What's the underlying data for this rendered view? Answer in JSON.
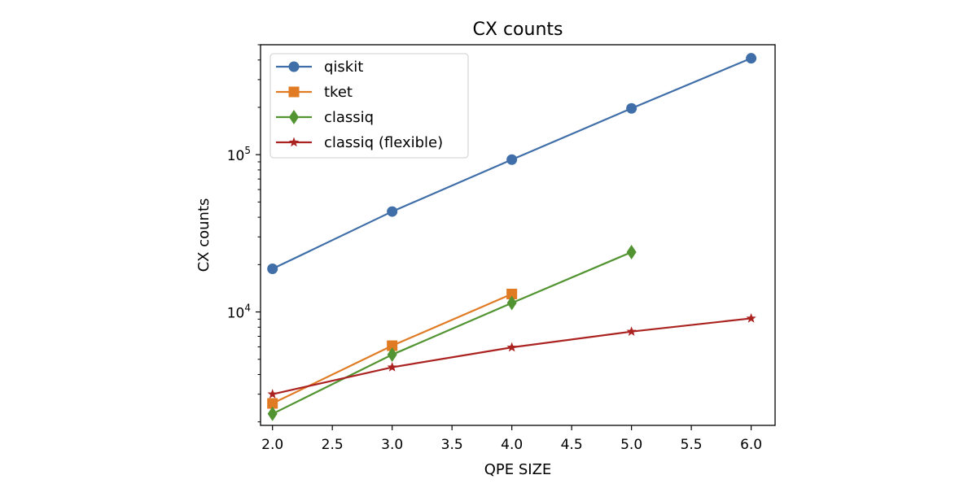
{
  "chart_data": {
    "type": "line",
    "title": "CX counts",
    "xlabel": "QPE SIZE",
    "ylabel": "CX counts",
    "yscale": "log",
    "xlim": [
      1.9,
      6.2
    ],
    "ylim": [
      1900,
      500000
    ],
    "xticks": [
      2.0,
      2.5,
      3.0,
      3.5,
      4.0,
      4.5,
      5.0,
      5.5,
      6.0
    ],
    "xtick_labels": [
      "2.0",
      "2.5",
      "3.0",
      "3.5",
      "4.0",
      "4.5",
      "5.0",
      "5.5",
      "6.0"
    ],
    "yticks_major": [
      10000,
      100000
    ],
    "ytick_labels": [
      {
        "base": "10",
        "exp": "4"
      },
      {
        "base": "10",
        "exp": "5"
      }
    ],
    "legend_position": "upper-left",
    "series": [
      {
        "name": "qiskit",
        "color": "#3f6ea8",
        "marker": "circle",
        "x": [
          2,
          3,
          4,
          5,
          6
        ],
        "y": [
          18800,
          43500,
          93000,
          197000,
          410000
        ]
      },
      {
        "name": "tket",
        "color": "#e07b24",
        "marker": "square",
        "x": [
          2,
          3,
          4
        ],
        "y": [
          2620,
          6100,
          13000
        ]
      },
      {
        "name": "classiq",
        "color": "#529431",
        "marker": "diamond",
        "x": [
          2,
          3,
          4,
          5
        ],
        "y": [
          2250,
          5350,
          11400,
          24000
        ]
      },
      {
        "name": "classiq (flexible)",
        "color": "#ab2321",
        "marker": "star",
        "x": [
          2,
          3,
          4,
          5,
          6
        ],
        "y": [
          3000,
          4450,
          5950,
          7500,
          9100
        ]
      }
    ]
  }
}
